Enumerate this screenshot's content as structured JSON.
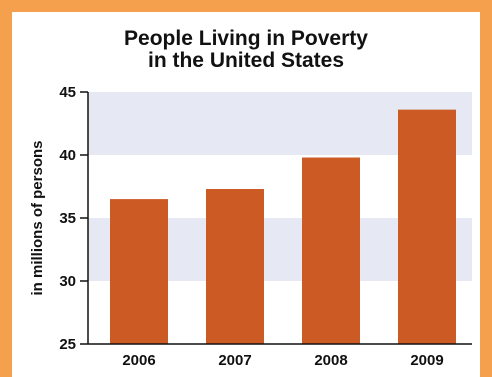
{
  "chart_data": {
    "type": "bar",
    "title_line1": "People Living in Poverty",
    "title_line2": "in the United States",
    "xlabel": "",
    "ylabel": "in millions of persons",
    "categories": [
      "2006",
      "2007",
      "2008",
      "2009"
    ],
    "values": [
      36.5,
      37.3,
      39.8,
      43.6
    ],
    "ylim": [
      25,
      45
    ],
    "yticks": [
      25,
      30,
      35,
      40,
      45
    ],
    "bar_color": "#cc5a25",
    "band_color": "#e6e8f3",
    "grid": false,
    "legend": "none"
  }
}
